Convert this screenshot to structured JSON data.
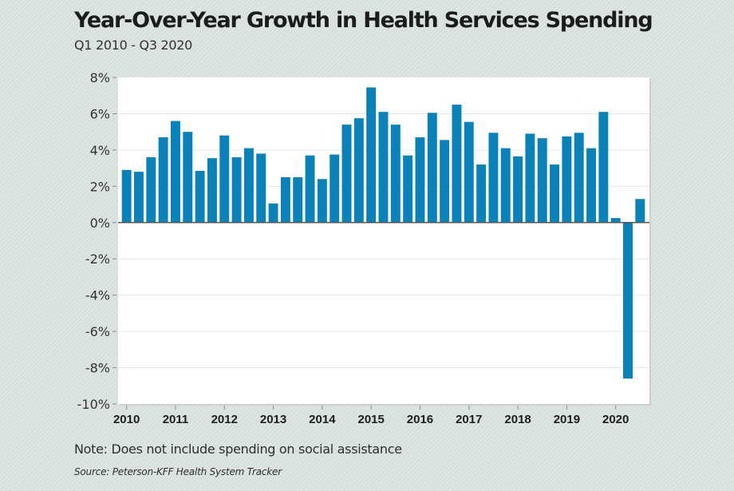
{
  "header": {
    "title": "Year-Over-Year Growth in Health Services Spending",
    "subtitle": "Q1 2010 - Q3 2020"
  },
  "footer": {
    "note": "Note: Does not include spending on social assistance",
    "source": "Source: Peterson-KFF Health System Tracker"
  },
  "colors": {
    "bar": "#0a82b8",
    "panel": "#ffffff",
    "gridline": "#e6e6e6",
    "zero_line": "#555555"
  },
  "chart_data": {
    "type": "bar",
    "title": "Year-Over-Year Growth in Health Services Spending",
    "subtitle": "Q1 2010 - Q3 2020",
    "xlabel": "",
    "ylabel": "",
    "ylim": [
      -10,
      8
    ],
    "yticks": [
      8,
      6,
      4,
      2,
      0,
      -2,
      -4,
      -6,
      -8,
      -10
    ],
    "ytick_labels": [
      "8%",
      "6%",
      "4%",
      "2%",
      "0%",
      "-2%",
      "-4%",
      "-6%",
      "-8%",
      "-10%"
    ],
    "xtick_labels": [
      "2010",
      "2011",
      "2012",
      "2013",
      "2014",
      "2015",
      "2016",
      "2017",
      "2018",
      "2019",
      "2020"
    ],
    "grid": true,
    "legend": "none",
    "categories": [
      "Q1 2010",
      "Q2 2010",
      "Q3 2010",
      "Q4 2010",
      "Q1 2011",
      "Q2 2011",
      "Q3 2011",
      "Q4 2011",
      "Q1 2012",
      "Q2 2012",
      "Q3 2012",
      "Q4 2012",
      "Q1 2013",
      "Q2 2013",
      "Q3 2013",
      "Q4 2013",
      "Q1 2014",
      "Q2 2014",
      "Q3 2014",
      "Q4 2014",
      "Q1 2015",
      "Q2 2015",
      "Q3 2015",
      "Q4 2015",
      "Q1 2016",
      "Q2 2016",
      "Q3 2016",
      "Q4 2016",
      "Q1 2017",
      "Q2 2017",
      "Q3 2017",
      "Q4 2017",
      "Q1 2018",
      "Q2 2018",
      "Q3 2018",
      "Q4 2018",
      "Q1 2019",
      "Q2 2019",
      "Q3 2019",
      "Q4 2019",
      "Q1 2020",
      "Q2 2020",
      "Q3 2020"
    ],
    "values": [
      2.9,
      2.8,
      3.6,
      4.7,
      5.6,
      5.0,
      2.85,
      3.55,
      4.8,
      3.6,
      4.1,
      3.8,
      1.05,
      2.5,
      2.5,
      3.7,
      2.4,
      3.75,
      5.4,
      5.75,
      7.45,
      6.1,
      5.4,
      3.7,
      4.7,
      6.05,
      4.55,
      6.5,
      5.55,
      3.2,
      4.95,
      4.1,
      3.65,
      4.9,
      4.65,
      3.2,
      4.75,
      4.95,
      4.1,
      6.1,
      0.25,
      -8.6,
      1.3
    ],
    "units": "%"
  }
}
